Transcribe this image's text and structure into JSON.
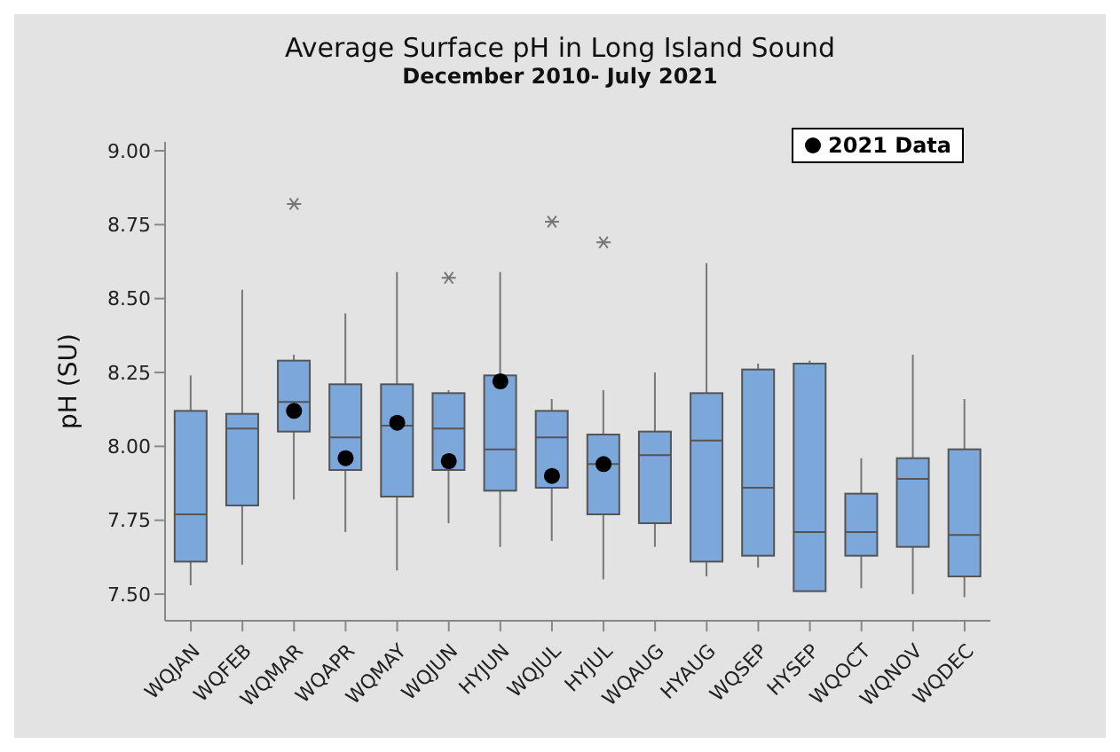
{
  "chart_data": {
    "type": "box",
    "title": "Average Surface pH in Long Island Sound",
    "subtitle": "December 2010- July 2021",
    "ylabel": "pH (SU)",
    "categories": [
      "WQJAN",
      "WQFEB",
      "WQMAR",
      "WQAPR",
      "WQMAY",
      "WQJUN",
      "HYJUN",
      "WQJUL",
      "HYJUL",
      "WQAUG",
      "HYAUG",
      "WQSEP",
      "HYSEP",
      "WQOCT",
      "WQNOV",
      "WQDEC"
    ],
    "series": [
      {
        "color": "#7ba7da",
        "boxes": [
          {
            "low": 7.53,
            "q1": 7.61,
            "median": 7.77,
            "q3": 8.12,
            "high": 8.24
          },
          {
            "low": 7.6,
            "q1": 7.8,
            "median": 8.06,
            "q3": 8.11,
            "high": 8.53
          },
          {
            "low": 7.82,
            "q1": 8.05,
            "median": 8.15,
            "q3": 8.29,
            "high": 8.31,
            "outliers": [
              8.82
            ]
          },
          {
            "low": 7.71,
            "q1": 7.92,
            "median": 8.03,
            "q3": 8.21,
            "high": 8.45
          },
          {
            "low": 7.58,
            "q1": 7.83,
            "median": 8.07,
            "q3": 8.21,
            "high": 8.59
          },
          {
            "low": 7.74,
            "q1": 7.92,
            "median": 8.06,
            "q3": 8.18,
            "high": 8.19,
            "outliers": [
              8.57
            ]
          },
          {
            "low": 7.66,
            "q1": 7.85,
            "median": 7.99,
            "q3": 8.24,
            "high": 8.59
          },
          {
            "low": 7.68,
            "q1": 7.86,
            "median": 8.03,
            "q3": 8.12,
            "high": 8.16,
            "outliers": [
              8.76
            ]
          },
          {
            "low": 7.55,
            "q1": 7.77,
            "median": 7.94,
            "q3": 8.04,
            "high": 8.19,
            "outliers": [
              8.69
            ]
          },
          {
            "low": 7.66,
            "q1": 7.74,
            "median": 7.97,
            "q3": 8.05,
            "high": 8.25
          },
          {
            "low": 7.56,
            "q1": 7.61,
            "median": 8.02,
            "q3": 8.18,
            "high": 8.62
          },
          {
            "low": 7.59,
            "q1": 7.63,
            "median": 7.86,
            "q3": 8.26,
            "high": 8.28
          },
          {
            "low": 7.51,
            "q1": 7.51,
            "median": 7.71,
            "q3": 8.28,
            "high": 8.29
          },
          {
            "low": 7.52,
            "q1": 7.63,
            "median": 7.71,
            "q3": 7.84,
            "high": 7.96
          },
          {
            "low": 7.5,
            "q1": 7.66,
            "median": 7.89,
            "q3": 7.96,
            "high": 8.31
          },
          {
            "low": 7.49,
            "q1": 7.56,
            "median": 7.7,
            "q3": 7.99,
            "high": 8.16
          }
        ]
      },
      {
        "type": "scatter",
        "name": "2021 Data",
        "color": "#000000",
        "x": [
          "WQMAR",
          "WQAPR",
          "WQMAY",
          "WQJUN",
          "HYJUN",
          "WQJUL",
          "HYJUL"
        ],
        "values": [
          8.12,
          7.96,
          8.08,
          7.95,
          8.22,
          7.9,
          7.94
        ]
      }
    ],
    "ylim": [
      7.41,
      9.03
    ],
    "yticks": [
      {
        "value": 7.5,
        "label": "7.50"
      },
      {
        "value": 7.75,
        "label": "7.75"
      },
      {
        "value": 8,
        "label": "8.00"
      },
      {
        "value": 8.25,
        "label": "8.25"
      },
      {
        "value": 8.5,
        "label": "8.50"
      },
      {
        "value": 8.75,
        "label": "8.75"
      },
      {
        "value": 9,
        "label": "9.00"
      }
    ],
    "grid": false,
    "legend": "top right"
  }
}
